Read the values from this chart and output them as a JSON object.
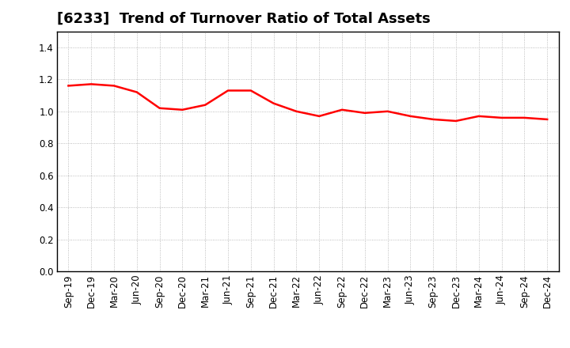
{
  "title": "[6233]  Trend of Turnover Ratio of Total Assets",
  "x_labels": [
    "Sep-19",
    "Dec-19",
    "Mar-20",
    "Jun-20",
    "Sep-20",
    "Dec-20",
    "Mar-21",
    "Jun-21",
    "Sep-21",
    "Dec-21",
    "Mar-22",
    "Jun-22",
    "Sep-22",
    "Dec-22",
    "Mar-23",
    "Jun-23",
    "Sep-23",
    "Dec-23",
    "Mar-24",
    "Jun-24",
    "Sep-24",
    "Dec-24"
  ],
  "y_values": [
    1.16,
    1.17,
    1.16,
    1.12,
    1.02,
    1.01,
    1.04,
    1.13,
    1.13,
    1.05,
    1.0,
    0.97,
    1.01,
    0.99,
    1.0,
    0.97,
    0.95,
    0.94,
    0.97,
    0.96,
    0.96,
    0.95
  ],
  "line_color": "#FF0000",
  "line_width": 1.8,
  "ylim": [
    0.0,
    1.5
  ],
  "yticks": [
    0.0,
    0.2,
    0.4,
    0.6,
    0.8,
    1.0,
    1.2,
    1.4
  ],
  "background_color": "#ffffff",
  "grid_color": "#aaaaaa",
  "title_fontsize": 13,
  "tick_fontsize": 8.5
}
